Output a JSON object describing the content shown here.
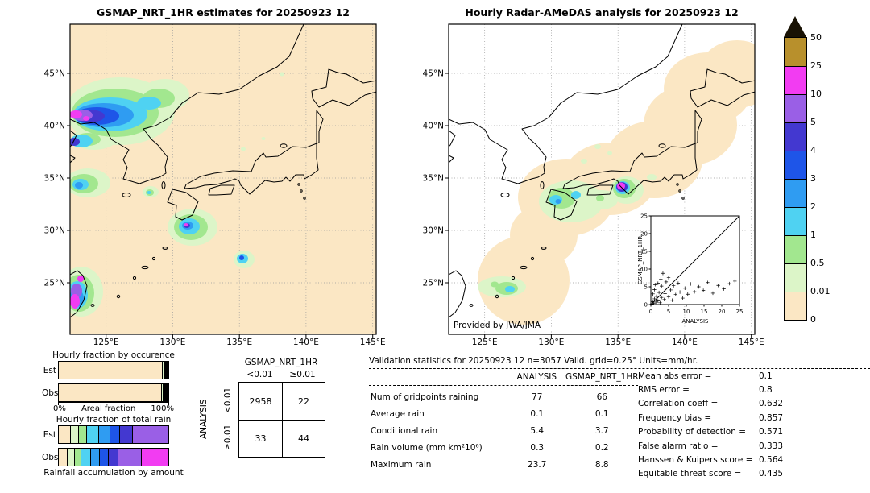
{
  "palette": {
    "c0": "#fbe7c4",
    "c001": "#dcf5c8",
    "c05": "#a2e78f",
    "c1": "#4fd2f2",
    "c2": "#2f9cf2",
    "c3": "#1e55e8",
    "c4": "#4338d0",
    "c5": "#9a5fe6",
    "c10": "#f23cf2",
    "c25": "#b8902c",
    "over": "#191204"
  },
  "colorbar": {
    "tick_labels": [
      "50",
      "25",
      "10",
      "5",
      "4",
      "3",
      "2",
      "1",
      "0.5",
      "0.01",
      "0"
    ],
    "block_levels": [
      "c25",
      "c10",
      "c5",
      "c4",
      "c3",
      "c2",
      "c1",
      "c05",
      "c001",
      "c0"
    ],
    "level_ranges": {
      "c0": "0-0.01",
      "c001": "0.01-0.5",
      "c05": "0.5-1",
      "c1": "1-2",
      "c2": "2-3",
      "c3": "3-4",
      "c4": "4-5",
      "c5": "5-10",
      "c10": "10-25",
      "c25": "25-50",
      "over": ">50"
    },
    "units": "mm/hr"
  },
  "chart_data": [
    {
      "type": "heatmap",
      "subtype": "precipitation-map",
      "title": "GSMAP_NRT_1HR estimates for 20250923 12",
      "units": "mm/hr",
      "lat_tick_labels": [
        "45°N",
        "40°N",
        "35°N",
        "30°N",
        "25°N"
      ],
      "lon_tick_labels": [
        "125°E",
        "130°E",
        "135°E",
        "140°E",
        "145°E"
      ],
      "background_level": "c0",
      "features": [
        {
          "area": "NE China / North Korea border (38-42N 122-128E)",
          "peak_level": "10-25 mm/hr",
          "desc": "large multi-intensity rain band"
        },
        {
          "area": "Yellow Sea (34-36N 122-125E)",
          "peak_level": "2-3 mm/hr"
        },
        {
          "area": "west of Kyushu (33.5N 128.5E)",
          "peak_level": "1-2 mm/hr"
        },
        {
          "area": "Pacific south of Shikoku (30-31.5N 133-135E)",
          "peak_level": "10-25 mm/hr"
        },
        {
          "area": "27N 136.5E",
          "peak_level": "3-4 mm/hr"
        },
        {
          "area": "Taiwan (23-26N 121-123E)",
          "peak_level": "10-25 mm/hr"
        }
      ]
    },
    {
      "type": "heatmap",
      "subtype": "precipitation-map",
      "title": "Hourly Radar-AMeDAS analysis for 20250923 12",
      "units": "mm/hr",
      "credit": "Provided by JWA/JMA",
      "lat_tick_labels": [
        "45°N",
        "40°N",
        "35°N",
        "30°N",
        "25°N"
      ],
      "lon_tick_labels": [
        "125°E",
        "130°E",
        "135°E",
        "140°E",
        "145°E"
      ],
      "background_level": "white outside radar range, 0-0.01 shading along Japanese archipelago radar coverage",
      "features": [
        {
          "area": "Kyushu / Shikoku (31-34N 129-134E)",
          "peak_level": "2-3 mm/hr"
        },
        {
          "area": "Kii peninsula (33.5N 135.5E)",
          "peak_level": "10-25 mm/hr"
        },
        {
          "area": "Okinawa (26-27N 127-129E)",
          "peak_level": "1-2 mm/hr"
        }
      ]
    },
    {
      "type": "scatter",
      "xlabel": "ANALYSIS",
      "ylabel": "GSMAP_NRT_1HR",
      "xlim": [
        0,
        25
      ],
      "ylim": [
        0,
        25
      ],
      "diagonal": true,
      "tick_values": [
        0,
        5,
        10,
        15,
        20,
        25
      ],
      "tick_labels": [
        "0",
        "5",
        "10",
        "15",
        "20",
        "25"
      ],
      "points": [
        [
          0.3,
          0.2
        ],
        [
          0.5,
          0.8
        ],
        [
          0.6,
          3
        ],
        [
          0.8,
          0.4
        ],
        [
          1,
          1.6
        ],
        [
          1,
          4.2
        ],
        [
          1.4,
          0.7
        ],
        [
          1.6,
          2.3
        ],
        [
          2,
          1
        ],
        [
          2,
          6
        ],
        [
          2.3,
          3.4
        ],
        [
          2.6,
          0.5
        ],
        [
          3,
          2
        ],
        [
          3,
          5.2
        ],
        [
          3.4,
          8.8
        ],
        [
          3.8,
          1.4
        ],
        [
          4,
          3.1
        ],
        [
          4.3,
          6.4
        ],
        [
          5,
          2.2
        ],
        [
          5,
          7.6
        ],
        [
          5.6,
          4.1
        ],
        [
          6,
          1.2
        ],
        [
          6.4,
          5.3
        ],
        [
          7,
          2.8
        ],
        [
          7.7,
          6
        ],
        [
          8.2,
          3.5
        ],
        [
          9,
          1.8
        ],
        [
          9.6,
          4.6
        ],
        [
          10.4,
          2.9
        ],
        [
          11.2,
          5.8
        ],
        [
          12.3,
          3.6
        ],
        [
          13.5,
          5
        ],
        [
          14.8,
          4
        ],
        [
          16,
          6.2
        ],
        [
          17.5,
          3.2
        ],
        [
          19,
          5.4
        ],
        [
          20.6,
          4.4
        ],
        [
          22.2,
          5.9
        ],
        [
          23.7,
          6.6
        ],
        [
          2.8,
          7.2
        ],
        [
          1.2,
          5.6
        ],
        [
          0.4,
          2.4
        ]
      ]
    },
    {
      "type": "bar",
      "subtype": "stacked-horizontal",
      "title": "Hourly fraction by occurence",
      "xlabel": "Areal fraction",
      "x_range_labels": [
        "0%",
        "100%"
      ],
      "units": "% of gridpoints by intensity level",
      "rows": [
        {
          "category": "Est",
          "segments": [
            [
              "c0",
              96.9
            ],
            [
              "c001",
              1.2
            ],
            [
              "c05",
              0.6
            ],
            [
              "c1",
              0.4
            ],
            [
              "c2",
              0.3
            ],
            [
              "c3",
              0.2
            ],
            [
              "c4",
              0.15
            ],
            [
              "c5",
              0.25
            ]
          ]
        },
        {
          "category": "Obs",
          "segments": [
            [
              "c0",
              96.4
            ],
            [
              "c001",
              1.4
            ],
            [
              "c05",
              0.7
            ],
            [
              "c1",
              0.5
            ],
            [
              "c2",
              0.3
            ],
            [
              "c3",
              0.2
            ],
            [
              "c4",
              0.15
            ],
            [
              "c5",
              0.2
            ],
            [
              "c10",
              0.15
            ]
          ]
        }
      ]
    },
    {
      "type": "bar",
      "subtype": "stacked-horizontal",
      "title": "Hourly fraction of total rain",
      "caption": "Rainfall accumulation by amount",
      "units": "% of total rain volume by intensity level",
      "rows": [
        {
          "category": "Est",
          "segments": [
            [
              "c0",
              10
            ],
            [
              "c001",
              8
            ],
            [
              "c05",
              7
            ],
            [
              "c1",
              11
            ],
            [
              "c2",
              10
            ],
            [
              "c3",
              9
            ],
            [
              "c4",
              12
            ],
            [
              "c5",
              33
            ]
          ]
        },
        {
          "category": "Obs",
          "segments": [
            [
              "c0",
              7
            ],
            [
              "c001",
              7
            ],
            [
              "c05",
              6
            ],
            [
              "c1",
              9
            ],
            [
              "c2",
              8
            ],
            [
              "c3",
              8
            ],
            [
              "c4",
              9
            ],
            [
              "c5",
              21
            ],
            [
              "c10",
              25
            ]
          ]
        }
      ]
    },
    {
      "type": "table",
      "subtype": "contingency",
      "title": "GSMAP_NRT_1HR",
      "row_axis": "ANALYSIS",
      "col_headers": [
        "<0.01",
        "≥0.01"
      ],
      "row_headers": [
        "<0.01",
        "≥0.01"
      ],
      "values": [
        [
          2958,
          22
        ],
        [
          33,
          44
        ]
      ]
    },
    {
      "type": "table",
      "subtype": "validation-statistics",
      "title": "Validation statistics for 20250923 12  n=3057 Valid. grid=0.25° Units=mm/hr.",
      "columns": [
        "ANALYSIS",
        "GSMAP_NRT_1HR"
      ],
      "rows": [
        {
          "label": "Num of gridpoints raining",
          "values": [
            77,
            66
          ]
        },
        {
          "label": "Average rain",
          "values": [
            0.1,
            0.1
          ]
        },
        {
          "label": "Conditional rain",
          "values": [
            5.4,
            3.7
          ]
        },
        {
          "label": "Rain volume (mm km²10⁶)",
          "values": [
            0.3,
            0.2
          ]
        },
        {
          "label": "Maximum rain",
          "values": [
            23.7,
            8.8
          ]
        }
      ],
      "extra_stats": [
        {
          "label": "Mean abs error =",
          "value": 0.1
        },
        {
          "label": "RMS error =",
          "value": 0.8
        },
        {
          "label": "Correlation coeff =",
          "value": 0.632
        },
        {
          "label": "Frequency bias =",
          "value": 0.857
        },
        {
          "label": "Probability of detection =",
          "value": 0.571
        },
        {
          "label": "False alarm ratio =",
          "value": 0.333
        },
        {
          "label": "Hanssen & Kuipers score =",
          "value": 0.564
        },
        {
          "label": "Equitable threat score =",
          "value": 0.435
        }
      ]
    }
  ],
  "maps_render": {
    "left_blobs": [
      [
        62,
        108,
        68,
        42,
        "c001"
      ],
      [
        118,
        88,
        30,
        20,
        "c001"
      ],
      [
        30,
        142,
        28,
        14,
        "c001"
      ],
      [
        56,
        110,
        54,
        30,
        "c05"
      ],
      [
        110,
        92,
        20,
        12,
        "c05"
      ],
      [
        22,
        143,
        16,
        8,
        "c05"
      ],
      [
        50,
        112,
        46,
        21,
        "c1"
      ],
      [
        98,
        98,
        15,
        8,
        "c1"
      ],
      [
        14,
        145,
        14,
        8,
        "c1"
      ],
      [
        42,
        113,
        37,
        15,
        "c2"
      ],
      [
        33,
        114,
        28,
        11,
        "c3"
      ],
      [
        24,
        114,
        19,
        8,
        "c4"
      ],
      [
        5,
        146,
        7,
        5,
        "c4"
      ],
      [
        15,
        113,
        13,
        7,
        "c5"
      ],
      [
        7,
        112,
        8,
        5,
        "c10"
      ],
      [
        20,
        117,
        4,
        3,
        "c10"
      ],
      [
        22,
        197,
        28,
        18,
        "c001"
      ],
      [
        17,
        198,
        18,
        12,
        "c05"
      ],
      [
        13,
        199,
        10,
        7,
        "c1"
      ],
      [
        11,
        200,
        5,
        4,
        "c2"
      ],
      [
        100,
        208,
        10,
        7,
        "c001"
      ],
      [
        99,
        209,
        5,
        4,
        "c05"
      ],
      [
        98,
        209,
        2.5,
        2,
        "c1"
      ],
      [
        152,
        252,
        31,
        23,
        "c001"
      ],
      [
        150,
        252,
        21,
        16,
        "c05"
      ],
      [
        148,
        251,
        13,
        10,
        "c1"
      ],
      [
        146,
        250,
        7,
        5,
        "c2"
      ],
      [
        145,
        250,
        4,
        3,
        "c4"
      ],
      [
        144,
        249,
        2.5,
        2,
        "c10"
      ],
      [
        216,
        292,
        13,
        11,
        "c001"
      ],
      [
        214,
        291,
        7,
        6,
        "c1"
      ],
      [
        213,
        290,
        3,
        3,
        "c3"
      ],
      [
        14,
        332,
        27,
        31,
        "c001"
      ],
      [
        11,
        334,
        19,
        23,
        "c05"
      ],
      [
        9,
        336,
        13,
        17,
        "c1"
      ],
      [
        8,
        340,
        9,
        11,
        "c2"
      ],
      [
        8,
        331,
        7,
        9,
        "c5"
      ],
      [
        6,
        344,
        6,
        9,
        "c10"
      ],
      [
        13,
        316,
        4,
        4,
        "c10"
      ],
      [
        215,
        155,
        3,
        2.5,
        "c001"
      ],
      [
        263,
        62,
        3,
        2.5,
        "c001"
      ],
      [
        240,
        142,
        2.5,
        2,
        "c001"
      ]
    ],
    "right_blobs": [
      [
        93,
        318,
        57,
        55,
        "c0"
      ],
      [
        118,
        262,
        42,
        38,
        "c0"
      ],
      [
        146,
        215,
        60,
        48,
        "c0"
      ],
      [
        200,
        192,
        58,
        45,
        "c0"
      ],
      [
        255,
        168,
        60,
        48,
        "c0"
      ],
      [
        300,
        125,
        58,
        50,
        "c0"
      ],
      [
        322,
        80,
        55,
        45,
        "c0"
      ],
      [
        358,
        62,
        48,
        42,
        "c0"
      ],
      [
        152,
        220,
        40,
        26,
        "c001"
      ],
      [
        190,
        218,
        20,
        12,
        "c001"
      ],
      [
        140,
        216,
        17,
        13,
        "c05"
      ],
      [
        133,
        218,
        8,
        6,
        "c1"
      ],
      [
        158,
        212,
        6,
        5,
        "c1"
      ],
      [
        136,
        220,
        3.5,
        3,
        "c2"
      ],
      [
        188,
        216,
        5,
        4,
        "c05"
      ],
      [
        221,
        206,
        21,
        17,
        "c001"
      ],
      [
        218,
        204,
        14,
        12,
        "c05"
      ],
      [
        216,
        203,
        9,
        8,
        "c1"
      ],
      [
        215,
        202,
        7,
        6,
        "c4"
      ],
      [
        214,
        201,
        5,
        4.5,
        "c10"
      ],
      [
        252,
        190,
        6,
        4,
        "c001"
      ],
      [
        185,
        152,
        4,
        3,
        "c001"
      ],
      [
        200,
        160,
        3,
        2.5,
        "c001"
      ],
      [
        168,
        170,
        4,
        3,
        "c001"
      ],
      [
        66,
        326,
        30,
        13,
        "c001"
      ],
      [
        72,
        328,
        14,
        8,
        "c05"
      ],
      [
        76,
        329,
        6,
        4,
        "c1"
      ],
      [
        57,
        323,
        5,
        3.5,
        "c05"
      ]
    ]
  }
}
